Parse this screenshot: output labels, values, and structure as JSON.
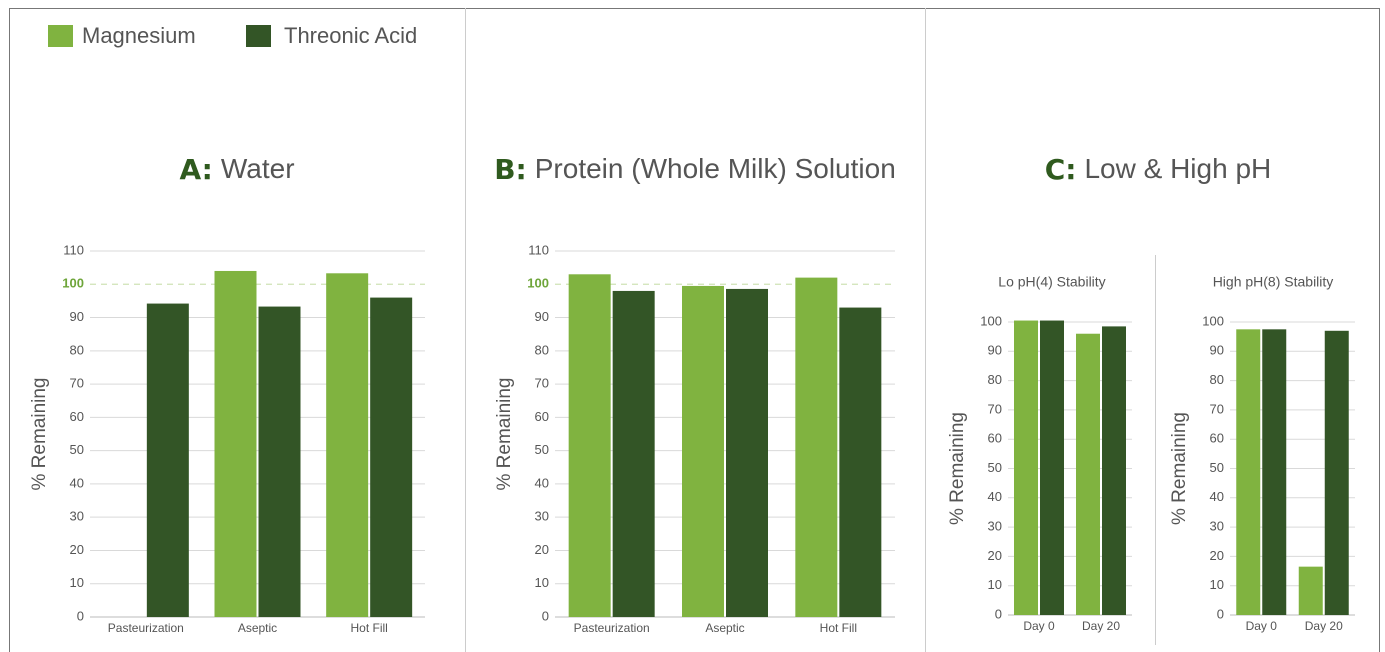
{
  "panel_c": {
    "title_letter": "C:",
    "title": "Low & High pH"
  },
  "chart_data": [
    {
      "type": "bar",
      "title_letter": "A:",
      "title": "Water",
      "y_label": "% Remaining",
      "categories": [
        "Pasteurization",
        "Aseptic",
        "Hot Fill"
      ],
      "series": [
        {
          "name": "Magnesium",
          "color": "#80b340",
          "values": [
            null,
            104,
            103.3
          ]
        },
        {
          "name": "Threonic Acid",
          "color": "#335526",
          "values": [
            94.2,
            93.3,
            96
          ]
        }
      ],
      "ylim": [
        0,
        110
      ],
      "yticks": [
        0,
        10,
        20,
        30,
        40,
        50,
        60,
        70,
        80,
        90,
        100,
        110
      ],
      "reference_line": 100,
      "grid": true
    },
    {
      "type": "bar",
      "title_letter": "B:",
      "title": "Protein (Whole Milk) Solution",
      "y_label": "% Remaining",
      "categories": [
        "Pasteurization",
        "Aseptic",
        "Hot Fill"
      ],
      "series": [
        {
          "values": [
            103,
            99.5,
            102
          ]
        },
        {
          "values": [
            98,
            98.6,
            93
          ]
        }
      ],
      "ylim": [
        0,
        110
      ],
      "yticks": [
        0,
        10,
        20,
        30,
        40,
        50,
        60,
        70,
        80,
        90,
        100,
        110
      ],
      "reference_line": 100,
      "grid": true
    },
    {
      "type": "bar",
      "title": "Lo pH(4) Stability",
      "y_label": "% Remaining",
      "categories": [
        "Day 0",
        "Day 20"
      ],
      "series": [
        {
          "values": [
            100.5,
            96
          ]
        },
        {
          "values": [
            100.5,
            98.5
          ]
        }
      ],
      "ylim": [
        0,
        100
      ],
      "yticks": [
        0,
        10,
        20,
        30,
        40,
        50,
        60,
        70,
        80,
        90,
        100
      ],
      "grid": true
    },
    {
      "type": "bar",
      "title": "High pH(8) Stability",
      "y_label": "% Remaining",
      "categories": [
        "Day 0",
        "Day 20"
      ],
      "series": [
        {
          "values": [
            97.5,
            16.5
          ]
        },
        {
          "values": [
            97.5,
            97
          ]
        }
      ],
      "ylim": [
        0,
        100
      ],
      "yticks": [
        0,
        10,
        20,
        30,
        40,
        50,
        60,
        70,
        80,
        90,
        100
      ],
      "grid": true
    }
  ]
}
